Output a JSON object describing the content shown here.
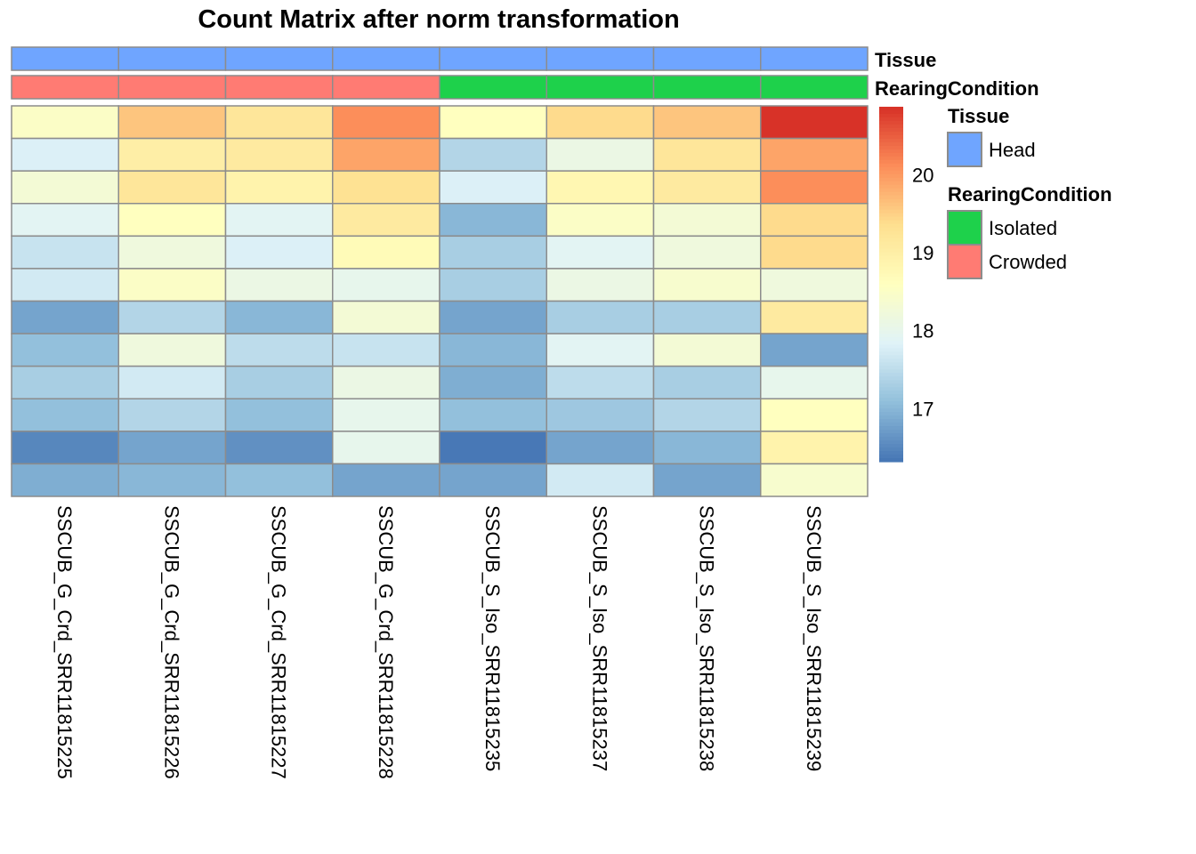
{
  "chart_data": {
    "type": "heatmap",
    "title": "Count Matrix after norm transformation",
    "columns": [
      "SSCUB_G_Crd_SRR11815225",
      "SSCUB_G_Crd_SRR11815226",
      "SSCUB_G_Crd_SRR11815227",
      "SSCUB_G_Crd_SRR11815228",
      "SSCUB_S_Iso_SRR11815235",
      "SSCUB_S_Iso_SRR11815237",
      "SSCUB_S_Iso_SRR11815238",
      "SSCUB_S_Iso_SRR11815239"
    ],
    "values": [
      [
        18.5,
        19.6,
        19.2,
        20.1,
        18.6,
        19.4,
        19.6,
        20.85
      ],
      [
        17.8,
        19.0,
        19.1,
        19.9,
        17.4,
        18.1,
        19.2,
        19.9
      ],
      [
        18.3,
        19.2,
        18.9,
        19.3,
        17.8,
        18.8,
        19.1,
        20.1
      ],
      [
        17.9,
        18.6,
        17.9,
        19.1,
        17.0,
        18.5,
        18.3,
        19.4
      ],
      [
        17.6,
        18.2,
        17.8,
        18.7,
        17.3,
        17.9,
        18.2,
        19.4
      ],
      [
        17.7,
        18.5,
        18.1,
        18.0,
        17.3,
        18.1,
        18.4,
        18.2
      ],
      [
        16.8,
        17.4,
        17.0,
        18.3,
        16.8,
        17.3,
        17.3,
        19.1
      ],
      [
        17.1,
        18.2,
        17.5,
        17.6,
        17.0,
        17.9,
        18.3,
        16.8
      ],
      [
        17.3,
        17.7,
        17.3,
        18.1,
        16.9,
        17.5,
        17.3,
        18.0
      ],
      [
        17.1,
        17.4,
        17.1,
        18.0,
        17.1,
        17.2,
        17.4,
        18.6
      ],
      [
        16.5,
        16.8,
        16.6,
        18.0,
        16.35,
        16.8,
        17.0,
        18.9
      ],
      [
        16.9,
        17.0,
        17.1,
        16.8,
        16.8,
        17.7,
        16.8,
        18.4
      ]
    ],
    "color_range": [
      16.32,
      20.87
    ],
    "palette": [
      "#4575B4",
      "#91BFDB",
      "#E0F3F8",
      "#FFFFBF",
      "#FEE090",
      "#FC8D59",
      "#D73027"
    ],
    "colorbar_ticks": [
      17,
      18,
      19,
      20
    ],
    "annotations": [
      {
        "name": "Tissue",
        "values": [
          "Head",
          "Head",
          "Head",
          "Head",
          "Head",
          "Head",
          "Head",
          "Head"
        ]
      },
      {
        "name": "RearingCondition",
        "values": [
          "Crowded",
          "Crowded",
          "Crowded",
          "Crowded",
          "Isolated",
          "Isolated",
          "Isolated",
          "Isolated"
        ]
      }
    ],
    "legend": [
      {
        "title": "Tissue",
        "items": [
          {
            "label": "Head",
            "color": "#6FA5FF"
          }
        ]
      },
      {
        "title": "RearingCondition",
        "items": [
          {
            "label": "Isolated",
            "color": "#1ED14B"
          },
          {
            "label": "Crowded",
            "color": "#FF7B73"
          }
        ]
      }
    ],
    "border_color": "#8C8C8C"
  }
}
